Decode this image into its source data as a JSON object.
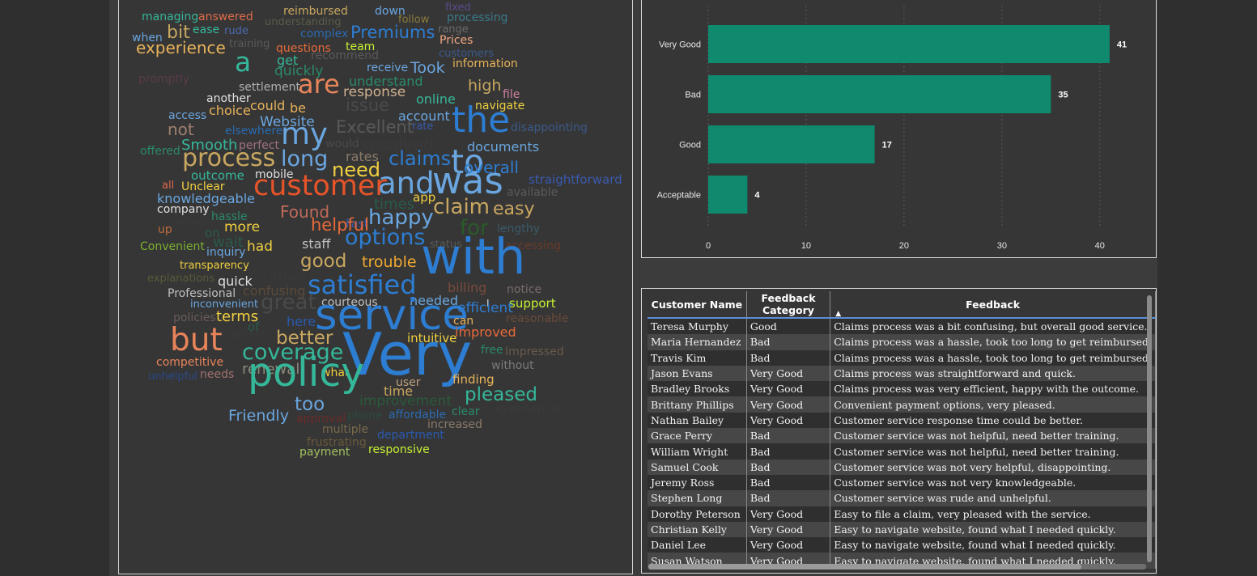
{
  "word_cloud": {
    "words": [
      {
        "text": "managing",
        "color": "#35b79a"
      },
      {
        "text": "answered",
        "color": "#e06b4a"
      },
      {
        "text": "reimbursed",
        "color": "#c9a760"
      },
      {
        "text": "down",
        "color": "#6aa6e0"
      },
      {
        "text": "fixed",
        "color": "#5a4a8a"
      },
      {
        "text": "processing",
        "color": "#3a7a8a"
      },
      {
        "text": "follow",
        "color": "#8a7a3a"
      },
      {
        "text": "understanding",
        "color": "#5a5a4a"
      },
      {
        "text": "ease",
        "color": "#35b79a"
      },
      {
        "text": "rude",
        "color": "#4a6ab0"
      },
      {
        "text": "range",
        "color": "#6a6a6a"
      },
      {
        "text": "when",
        "color": "#6aa6e0"
      },
      {
        "text": "bit",
        "color": "#c9a760"
      },
      {
        "text": "complex",
        "color": "#2a6ab0"
      },
      {
        "text": "Premiums",
        "color": "#2d7dd2"
      },
      {
        "text": "training",
        "color": "#5a5a5a"
      },
      {
        "text": "Prices",
        "color": "#f0a880"
      },
      {
        "text": "experience",
        "color": "#e8b35a"
      },
      {
        "text": "questions",
        "color": "#e86a3a"
      },
      {
        "text": "team",
        "color": "#c6f032"
      },
      {
        "text": "customers",
        "color": "#3a5a8a"
      },
      {
        "text": "a",
        "color": "#35b79a"
      },
      {
        "text": "recommend",
        "color": "#5a5a5a"
      },
      {
        "text": "get",
        "color": "#35b79a"
      },
      {
        "text": "receive",
        "color": "#6aa6e0"
      },
      {
        "text": "Took",
        "color": "#6aa6e0"
      },
      {
        "text": "information",
        "color": "#e8b35a"
      },
      {
        "text": "promptly",
        "color": "#5a3a4a"
      },
      {
        "text": "quickly",
        "color": "#2a8a6a"
      },
      {
        "text": "understand",
        "color": "#2a8a6a"
      },
      {
        "text": "are",
        "color": "#e8845a"
      },
      {
        "text": "high",
        "color": "#c9a760"
      },
      {
        "text": "settlement",
        "color": "#b0b0b0"
      },
      {
        "text": "response",
        "color": "#d0b090"
      },
      {
        "text": "file",
        "color": "#d080a0"
      },
      {
        "text": "another",
        "color": "#e0e0e0"
      },
      {
        "text": "online",
        "color": "#35b79a"
      },
      {
        "text": "could",
        "color": "#e8b35a"
      },
      {
        "text": "choice",
        "color": "#e8b35a"
      },
      {
        "text": "be",
        "color": "#e8b35a"
      },
      {
        "text": "issue",
        "color": "#4a4a4a"
      },
      {
        "text": "navigate",
        "color": "#f0d040"
      },
      {
        "text": "access",
        "color": "#6aa6e0"
      },
      {
        "text": "account",
        "color": "#6aa6e0"
      },
      {
        "text": "the",
        "color": "#2d7dd2"
      },
      {
        "text": "Website",
        "color": "#6aa6e0"
      },
      {
        "text": "not",
        "color": "#a08070"
      },
      {
        "text": "my",
        "color": "#6aa6e0"
      },
      {
        "text": "Excellent",
        "color": "#5a5a5a"
      },
      {
        "text": "rate",
        "color": "#3a5ab0"
      },
      {
        "text": "disappointing",
        "color": "#3a5a8a"
      },
      {
        "text": "elsewhere",
        "color": "#2a6ab0"
      },
      {
        "text": "would",
        "color": "#4a4a4a"
      },
      {
        "text": "resolved",
        "color": "#3a3a3a"
      },
      {
        "text": "Smooth",
        "color": "#35b79a"
      },
      {
        "text": "perfect",
        "color": "#a07080"
      },
      {
        "text": "documents",
        "color": "#6aa6e0"
      },
      {
        "text": "offered",
        "color": "#2a8a6a"
      },
      {
        "text": "rates",
        "color": "#8a7a6a"
      },
      {
        "text": "process",
        "color": "#c9a760"
      },
      {
        "text": "long",
        "color": "#6aa6e0"
      },
      {
        "text": "claims",
        "color": "#2d7dd2"
      },
      {
        "text": "to",
        "color": "#6aa6e0"
      },
      {
        "text": "overall",
        "color": "#2d7dd2"
      },
      {
        "text": "outcome",
        "color": "#35b79a"
      },
      {
        "text": "mobile",
        "color": "#e0e0e0"
      },
      {
        "text": "need",
        "color": "#f0d040"
      },
      {
        "text": "straightforward",
        "color": "#3a5ab0"
      },
      {
        "text": "all",
        "color": "#e06b4a"
      },
      {
        "text": "Unclear",
        "color": "#f0d040"
      },
      {
        "text": "customer",
        "color": "#e8542a"
      },
      {
        "text": "and",
        "color": "#6aa6e0"
      },
      {
        "text": "was",
        "color": "#6aa6e0"
      },
      {
        "text": "available",
        "color": "#5a5a5a"
      },
      {
        "text": "knowledgeable",
        "color": "#6aa6e0"
      },
      {
        "text": "app",
        "color": "#f0d040"
      },
      {
        "text": "company",
        "color": "#e0e0e0"
      },
      {
        "text": "times",
        "color": "#2a5a4a"
      },
      {
        "text": "claim",
        "color": "#c9a760"
      },
      {
        "text": "easy",
        "color": "#c9a760"
      },
      {
        "text": "hassle",
        "color": "#2a8a6a"
      },
      {
        "text": "Found",
        "color": "#c06b5a"
      },
      {
        "text": "minor",
        "color": "#3a3a3a"
      },
      {
        "text": "up",
        "color": "#c06b3a"
      },
      {
        "text": "more",
        "color": "#f0d040"
      },
      {
        "text": "Fast",
        "color": "#3a5ab0"
      },
      {
        "text": "happy",
        "color": "#6aa6e0"
      },
      {
        "text": "lengthy",
        "color": "#3a5a6a"
      },
      {
        "text": "on",
        "color": "#2a5a4a"
      },
      {
        "text": "helpful",
        "color": "#e86a3a"
      },
      {
        "text": "for",
        "color": "#2a5a2a"
      },
      {
        "text": "Convenient",
        "color": "#7ab030"
      },
      {
        "text": "wait",
        "color": "#2a5a4a"
      },
      {
        "text": "staff",
        "color": "#c0c0c0"
      },
      {
        "text": "options",
        "color": "#2d7dd2"
      },
      {
        "text": "status",
        "color": "#5a5a5a"
      },
      {
        "text": "accessing",
        "color": "#6a3a2a"
      },
      {
        "text": "had",
        "color": "#f0d040"
      },
      {
        "text": "inquiry",
        "color": "#6aa6e0"
      },
      {
        "text": "with",
        "color": "#2d7dd2"
      },
      {
        "text": "transparency",
        "color": "#f0d040"
      },
      {
        "text": "good",
        "color": "#c9a760"
      },
      {
        "text": "trouble",
        "color": "#f0a830"
      },
      {
        "text": "explanations",
        "color": "#5a5a3a"
      },
      {
        "text": "quick",
        "color": "#e0e0e0"
      },
      {
        "text": "details",
        "color": "#3a3a3a"
      },
      {
        "text": "satisfied",
        "color": "#2d7dd2"
      },
      {
        "text": "billing",
        "color": "#7a4a3a"
      },
      {
        "text": "notice",
        "color": "#7a6a6a"
      },
      {
        "text": "Professional",
        "color": "#c0c0c0"
      },
      {
        "text": "confusing",
        "color": "#5a4a3a"
      },
      {
        "text": "I",
        "color": "#e0e0e0"
      },
      {
        "text": "courteous",
        "color": "#c0c0c0"
      },
      {
        "text": "needed",
        "color": "#6aa6e0"
      },
      {
        "text": "support",
        "color": "#c6f032"
      },
      {
        "text": "inconvenient",
        "color": "#6aa6e0"
      },
      {
        "text": "great",
        "color": "#4a4a4a"
      },
      {
        "text": "efficient",
        "color": "#2d7dd2"
      },
      {
        "text": "policies",
        "color": "#6a5a5a"
      },
      {
        "text": "terms",
        "color": "#f0d040"
      },
      {
        "text": "service",
        "color": "#2d7dd2"
      },
      {
        "text": "here",
        "color": "#2a5ab0"
      },
      {
        "text": "can",
        "color": "#e8b35a"
      },
      {
        "text": "reasonable",
        "color": "#6a4a3a"
      },
      {
        "text": "of",
        "color": "#2a5a4a"
      },
      {
        "text": "others",
        "color": "#3a3a3a"
      },
      {
        "text": "improved",
        "color": "#e86a3a"
      },
      {
        "text": "but",
        "color": "#e8845a"
      },
      {
        "text": "better",
        "color": "#c9a760"
      },
      {
        "text": "intuitive",
        "color": "#f0d040"
      },
      {
        "text": "Very",
        "color": "#2d7dd2"
      },
      {
        "text": "coverage",
        "color": "#35b79a"
      },
      {
        "text": "free",
        "color": "#2a8a6a"
      },
      {
        "text": "Impressed",
        "color": "#6a5a4a"
      },
      {
        "text": "competitive",
        "color": "#e8845a"
      },
      {
        "text": "without",
        "color": "#7a7a7a"
      },
      {
        "text": "renewal",
        "color": "#8a8a7a"
      },
      {
        "text": "unhelpful",
        "color": "#2a4a8a"
      },
      {
        "text": "needs",
        "color": "#a07070"
      },
      {
        "text": "what",
        "color": "#f0d040"
      },
      {
        "text": "finding",
        "color": "#e8b35a"
      },
      {
        "text": "policy",
        "color": "#35b79a"
      },
      {
        "text": "user",
        "color": "#c0a080"
      },
      {
        "text": "time",
        "color": "#c9a760"
      },
      {
        "text": "pleased",
        "color": "#35b79a"
      },
      {
        "text": "improvement",
        "color": "#2a5a3a"
      },
      {
        "text": "too",
        "color": "#6aa6e0"
      },
      {
        "text": "Friendly",
        "color": "#6aa6e0"
      },
      {
        "text": "approval",
        "color": "#6a2a2a"
      },
      {
        "text": "phone",
        "color": "#2a4a3a"
      },
      {
        "text": "affordable",
        "color": "#2a6ab0"
      },
      {
        "text": "clear",
        "color": "#2a8a6a"
      },
      {
        "text": "experiences",
        "color": "#3a3a3a"
      },
      {
        "text": "increased",
        "color": "#8a7a6a"
      },
      {
        "text": "multiple",
        "color": "#7a6a4a"
      },
      {
        "text": "department",
        "color": "#2a5ab0"
      },
      {
        "text": "frustrating",
        "color": "#6a5a3a"
      },
      {
        "text": "payment",
        "color": "#a0c060"
      },
      {
        "text": "responsive",
        "color": "#c6f032"
      }
    ]
  },
  "chart_data": {
    "type": "bar",
    "orientation": "horizontal",
    "categories": [
      "Very Good",
      "Bad",
      "Good",
      "Acceptable"
    ],
    "values": [
      41,
      35,
      17,
      4
    ],
    "xlim": [
      0,
      42
    ],
    "xticks": [
      0,
      10,
      20,
      30,
      40
    ],
    "xlabel": "",
    "ylabel": "",
    "title": "",
    "grid": "vertical dotted",
    "bar_color": "#0f8a6e"
  },
  "table": {
    "columns": [
      "Customer Name",
      "Feedback Category",
      "Feedback"
    ],
    "sorted_column": "Feedback",
    "rows": [
      [
        "Teresa Murphy",
        "Good",
        "Claims process was a bit confusing, but overall good service."
      ],
      [
        "Maria Hernandez",
        "Bad",
        "Claims process was a hassle, took too long to get reimbursed."
      ],
      [
        "Travis Kim",
        "Bad",
        "Claims process was a hassle, took too long to get reimbursed."
      ],
      [
        "Jason Evans",
        "Very Good",
        "Claims process was straightforward and quick."
      ],
      [
        "Bradley Brooks",
        "Very Good",
        "Claims process was very efficient, happy with the outcome."
      ],
      [
        "Brittany Phillips",
        "Very Good",
        "Convenient payment options, very pleased."
      ],
      [
        "Nathan Bailey",
        "Very Good",
        "Customer service response time could be better."
      ],
      [
        "Grace Perry",
        "Bad",
        "Customer service was not helpful, need better training."
      ],
      [
        "William Wright",
        "Bad",
        "Customer service was not helpful, need better training."
      ],
      [
        "Samuel Cook",
        "Bad",
        "Customer service was not very helpful, disappointing."
      ],
      [
        "Jeremy Ross",
        "Bad",
        "Customer service was not very knowledgeable."
      ],
      [
        "Stephen Long",
        "Bad",
        "Customer service was rude and unhelpful."
      ],
      [
        "Dorothy Peterson",
        "Very Good",
        "Easy to file a claim, very pleased with the service."
      ],
      [
        "Christian Kelly",
        "Very Good",
        "Easy to navigate website, found what I needed quickly."
      ],
      [
        "Daniel Lee",
        "Very Good",
        "Easy to navigate website, found what I needed quickly."
      ],
      [
        "Susan Watson",
        "Very Good",
        "Easy to navigate website, found what I needed quickly."
      ]
    ]
  }
}
